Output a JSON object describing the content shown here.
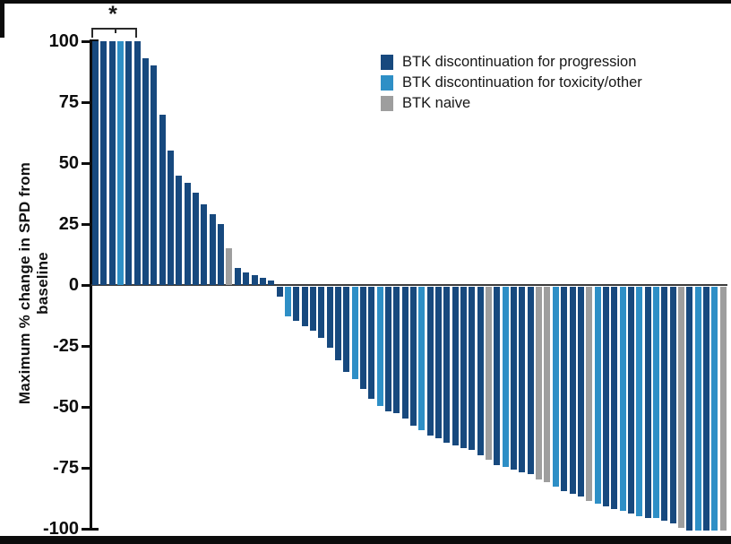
{
  "chart_data": {
    "type": "bar",
    "variant": "waterfall",
    "title": "",
    "xlabel": "",
    "ylabel": "Maximum % change in SPD from baseline",
    "ylim": [
      -100,
      100
    ],
    "yticks": [
      100,
      75,
      50,
      25,
      0,
      -25,
      -50,
      -75,
      -100
    ],
    "grid": false,
    "legend_position": "upper-right-inside",
    "annotation": {
      "symbol": "*",
      "note": "bracket spanning the first five bars at +100"
    },
    "groups": {
      "P": {
        "name": "BTK discontinuation for progression",
        "color": "#17497E"
      },
      "T": {
        "name": "BTK discontinuation for toxicity/other",
        "color": "#2E8FC6"
      },
      "N": {
        "name": "BTK naive",
        "color": "#9E9E9E"
      }
    },
    "legend": [
      {
        "label": "BTK discontinuation for progression",
        "group": "P",
        "color": "#17497E"
      },
      {
        "label": "BTK discontinuation for toxicity/other",
        "group": "T",
        "color": "#2E8FC6"
      },
      {
        "label": "BTK naive",
        "group": "N",
        "color": "#9E9E9E"
      }
    ],
    "bars": [
      [
        100,
        "P"
      ],
      [
        100,
        "P"
      ],
      [
        100,
        "P"
      ],
      [
        100,
        "T"
      ],
      [
        100,
        "P"
      ],
      [
        100,
        "P"
      ],
      [
        93,
        "P"
      ],
      [
        90,
        "P"
      ],
      [
        70,
        "P"
      ],
      [
        55,
        "P"
      ],
      [
        45,
        "P"
      ],
      [
        42,
        "P"
      ],
      [
        38,
        "P"
      ],
      [
        33,
        "P"
      ],
      [
        29,
        "P"
      ],
      [
        25,
        "P"
      ],
      [
        15,
        "N"
      ],
      [
        7,
        "P"
      ],
      [
        5,
        "P"
      ],
      [
        4,
        "P"
      ],
      [
        3,
        "P"
      ],
      [
        2,
        "P"
      ],
      [
        -4,
        "P"
      ],
      [
        -12,
        "T"
      ],
      [
        -14,
        "P"
      ],
      [
        -16,
        "P"
      ],
      [
        -18,
        "P"
      ],
      [
        -21,
        "P"
      ],
      [
        -25,
        "P"
      ],
      [
        -30,
        "P"
      ],
      [
        -35,
        "P"
      ],
      [
        -38,
        "T"
      ],
      [
        -42,
        "P"
      ],
      [
        -46,
        "P"
      ],
      [
        -49,
        "T"
      ],
      [
        -51,
        "P"
      ],
      [
        -52,
        "P"
      ],
      [
        -54,
        "P"
      ],
      [
        -57,
        "P"
      ],
      [
        -59,
        "T"
      ],
      [
        -61,
        "P"
      ],
      [
        -62,
        "P"
      ],
      [
        -64,
        "P"
      ],
      [
        -65,
        "P"
      ],
      [
        -66,
        "P"
      ],
      [
        -67,
        "P"
      ],
      [
        -69,
        "P"
      ],
      [
        -71,
        "N"
      ],
      [
        -73,
        "P"
      ],
      [
        -74,
        "T"
      ],
      [
        -75,
        "P"
      ],
      [
        -76,
        "P"
      ],
      [
        -77,
        "P"
      ],
      [
        -79,
        "N"
      ],
      [
        -80,
        "N"
      ],
      [
        -82,
        "T"
      ],
      [
        -84,
        "P"
      ],
      [
        -85,
        "P"
      ],
      [
        -86,
        "P"
      ],
      [
        -88,
        "N"
      ],
      [
        -89,
        "T"
      ],
      [
        -90,
        "P"
      ],
      [
        -91,
        "P"
      ],
      [
        -92,
        "T"
      ],
      [
        -93,
        "P"
      ],
      [
        -94,
        "T"
      ],
      [
        -95,
        "P"
      ],
      [
        -95,
        "T"
      ],
      [
        -96,
        "P"
      ],
      [
        -97,
        "P"
      ],
      [
        -99,
        "N"
      ],
      [
        -100,
        "P"
      ],
      [
        -100,
        "T"
      ],
      [
        -100,
        "P"
      ],
      [
        -100,
        "T"
      ],
      [
        -100,
        "N"
      ]
    ]
  }
}
